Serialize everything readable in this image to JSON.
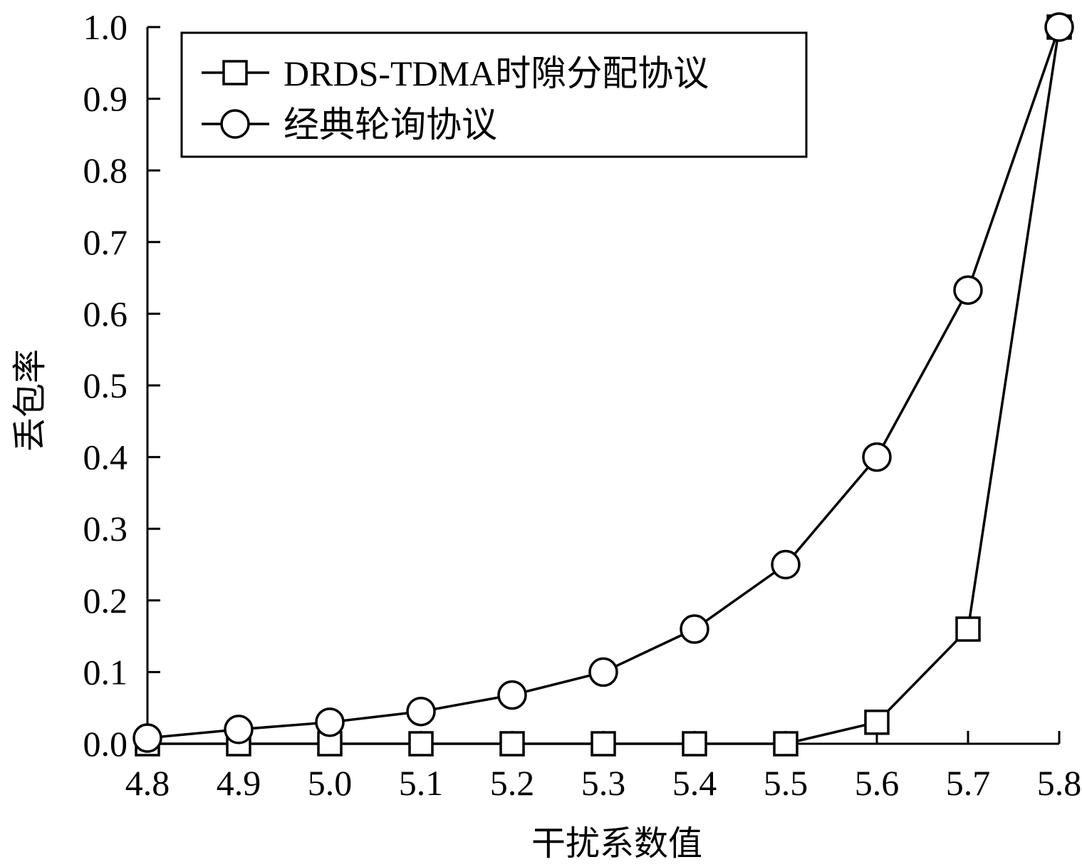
{
  "chart_data": {
    "type": "line",
    "title": "",
    "xlabel": "干扰系数值",
    "ylabel": "丢包率",
    "x": [
      4.8,
      4.9,
      5.0,
      5.1,
      5.2,
      5.3,
      5.4,
      5.5,
      5.6,
      5.7,
      5.8
    ],
    "xlim": [
      4.8,
      5.8
    ],
    "ylim": [
      0.0,
      1.0
    ],
    "xticks": [
      "4.8",
      "4.9",
      "5.0",
      "5.1",
      "5.2",
      "5.3",
      "5.4",
      "5.5",
      "5.6",
      "5.7",
      "5.8"
    ],
    "yticks": [
      "0.0",
      "0.1",
      "0.2",
      "0.3",
      "0.4",
      "0.5",
      "0.6",
      "0.7",
      "0.8",
      "0.9",
      "1.0"
    ],
    "grid": false,
    "legend_position": "top-left",
    "series": [
      {
        "name": "DRDS-TDMA时隙分配协议",
        "marker": "square",
        "color": "#000000",
        "values": [
          0.0,
          0.0,
          0.0,
          0.0,
          0.0,
          0.0,
          0.0,
          0.0,
          0.03,
          0.16,
          1.0
        ]
      },
      {
        "name": "经典轮询协议",
        "marker": "circle",
        "color": "#000000",
        "values": [
          0.008,
          0.02,
          0.03,
          0.045,
          0.068,
          0.1,
          0.16,
          0.25,
          0.4,
          0.633,
          1.0
        ]
      }
    ]
  }
}
